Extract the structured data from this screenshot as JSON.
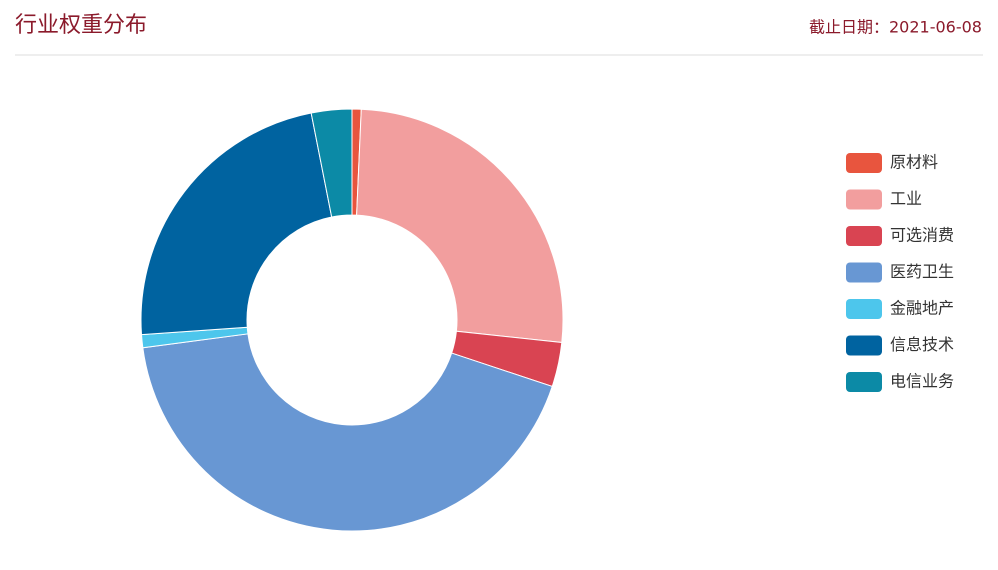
{
  "chart_data": {
    "type": "donut",
    "title": "行业权重分布",
    "date": "截止日期：2021-06-08",
    "categories": [
      "原材料",
      "工业",
      "可选消费",
      "医药卫生",
      "金融地产",
      "信息技术",
      "电信业务"
    ],
    "values": [
      0.7,
      26.0,
      3.4,
      42.8,
      1.0,
      23.0,
      3.1
    ],
    "colors": [
      "#e8553e",
      "#f29e9e",
      "#d94452",
      "#6897d3",
      "#4dc6ec",
      "#0063a0",
      "#0c8aa6"
    ],
    "legend": "right"
  }
}
